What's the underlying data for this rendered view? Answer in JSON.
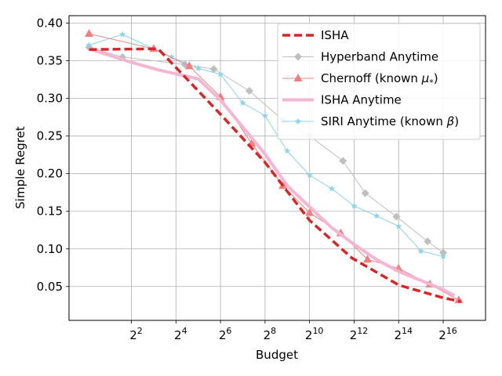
{
  "chart_data": {
    "type": "line",
    "xlabel": "Budget",
    "ylabel": "Simple Regret",
    "x_scale": "log2",
    "xlim_exp": [
      -0.8,
      17.9
    ],
    "ylim": [
      0.005,
      0.41
    ],
    "grid": true,
    "legend_position": "top-right",
    "x_ticks": [
      {
        "base": "2",
        "exp": "2",
        "value_exp": 2
      },
      {
        "base": "2",
        "exp": "4",
        "value_exp": 4
      },
      {
        "base": "2",
        "exp": "6",
        "value_exp": 6
      },
      {
        "base": "2",
        "exp": "8",
        "value_exp": 8
      },
      {
        "base": "2",
        "exp": "10",
        "value_exp": 10
      },
      {
        "base": "2",
        "exp": "12",
        "value_exp": 12
      },
      {
        "base": "2",
        "exp": "14",
        "value_exp": 14
      },
      {
        "base": "2",
        "exp": "16",
        "value_exp": 16
      }
    ],
    "y_ticks": [
      {
        "label": "0.05",
        "value": 0.05
      },
      {
        "label": "0.10",
        "value": 0.1
      },
      {
        "label": "0.15",
        "value": 0.15
      },
      {
        "label": "0.20",
        "value": 0.2
      },
      {
        "label": "0.25",
        "value": 0.25
      },
      {
        "label": "0.30",
        "value": 0.3
      },
      {
        "label": "0.35",
        "value": 0.35
      },
      {
        "label": "0.40",
        "value": 0.4
      }
    ],
    "series": [
      {
        "name": "ISHA",
        "color": "#d62728",
        "style": "dashed-thick",
        "marker": "none",
        "x_log2": [
          0.1,
          3.2,
          5.9,
          8.0,
          10.0,
          11.9,
          14.0,
          16.0,
          16.8
        ],
        "y": [
          0.365,
          0.366,
          0.282,
          0.215,
          0.138,
          0.088,
          0.052,
          0.035,
          0.03
        ]
      },
      {
        "name": "Hyperband Anytime",
        "color": "#bfbfbf",
        "style": "solid-thin",
        "marker": "diamond",
        "x_log2": [
          0.1,
          1.6,
          4.4,
          5.7,
          7.3,
          8.8,
          10.0,
          11.5,
          12.5,
          13.9,
          15.3,
          16.0
        ],
        "y": [
          0.368,
          0.355,
          0.345,
          0.339,
          0.31,
          0.271,
          0.25,
          0.217,
          0.174,
          0.143,
          0.11,
          0.095
        ]
      },
      {
        "name": "Chernoff (known μ*)",
        "legend_base": "Chernoff (known ",
        "legend_sym": "μ",
        "legend_sub": "*",
        "legend_end": ")",
        "color": "#f08080",
        "style": "solid-thin",
        "marker": "triangle",
        "x_log2": [
          0.1,
          3.0,
          4.6,
          6.0,
          7.4,
          8.8,
          10.0,
          11.4,
          12.6,
          14.0,
          15.4,
          16.7
        ],
        "y": [
          0.386,
          0.366,
          0.343,
          0.302,
          0.24,
          0.184,
          0.148,
          0.121,
          0.086,
          0.074,
          0.053,
          0.032
        ]
      },
      {
        "name": "ISHA Anytime",
        "color": "#f4b6d2",
        "style": "solid-thick",
        "marker": "none",
        "x_log2": [
          0.1,
          2.0,
          3.2,
          5.0,
          6.0,
          7.0,
          8.0,
          9.0,
          10.0,
          11.0,
          12.0,
          13.0,
          14.0,
          15.0,
          16.0,
          16.5
        ],
        "y": [
          0.366,
          0.348,
          0.338,
          0.326,
          0.298,
          0.262,
          0.226,
          0.184,
          0.156,
          0.128,
          0.106,
          0.086,
          0.07,
          0.058,
          0.046,
          0.038
        ]
      },
      {
        "name": "SIRI Anytime (known β)",
        "legend_base": "SIRI Anytime (known ",
        "legend_sym": "β",
        "legend_end": ")",
        "color": "#8fd3e8",
        "style": "solid-thin",
        "marker": "star",
        "x_log2": [
          0.1,
          1.6,
          3.8,
          5.0,
          6.0,
          7.0,
          8.0,
          9.0,
          10.0,
          11.0,
          12.0,
          13.0,
          14.0,
          15.0,
          16.0
        ],
        "y": [
          0.371,
          0.385,
          0.355,
          0.34,
          0.332,
          0.294,
          0.277,
          0.23,
          0.198,
          0.18,
          0.157,
          0.144,
          0.13,
          0.097,
          0.09
        ]
      }
    ]
  }
}
